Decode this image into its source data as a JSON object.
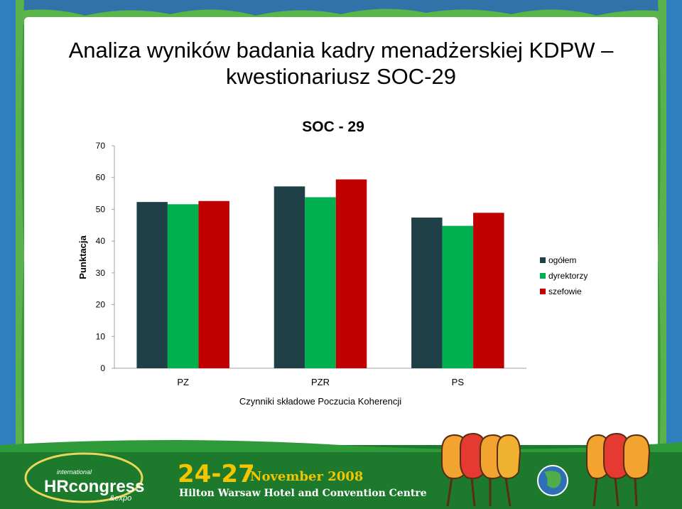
{
  "slide": {
    "title_line1": "Analiza wyników badania kadry menadżerskiej KDPW –",
    "title_line2": "kwestionariusz SOC-29"
  },
  "chart_data": {
    "type": "bar",
    "title": "SOC - 29",
    "xlabel": "Czynniki składowe Poczucia Koherencji",
    "ylabel": "Punktacja",
    "categories": [
      "PZ",
      "PZR",
      "PS"
    ],
    "series": [
      {
        "name": "ogółem",
        "color": "#1f4047",
        "values": [
          52.3,
          57.2,
          47.4
        ]
      },
      {
        "name": "dyrektorzy",
        "color": "#00b050",
        "values": [
          51.6,
          53.8,
          44.8
        ]
      },
      {
        "name": "szefowie",
        "color": "#c00000",
        "values": [
          52.6,
          59.4,
          48.9
        ]
      }
    ],
    "ylim": [
      0,
      70
    ],
    "yticks": [
      "0",
      "10",
      "20",
      "30",
      "40",
      "50",
      "60",
      "70"
    ],
    "grid": false,
    "legend_position": "right"
  },
  "footer": {
    "logo_line1": "international",
    "logo_main": "HRcongress",
    "logo_sub": "&expo",
    "date_range": "24-27",
    "date_month": "November 2008",
    "venue": "Hilton Warsaw Hotel and Convention Centre"
  },
  "colors": {
    "frame_green": "#2f9a3a",
    "frame_blue": "#2f6fb5",
    "footer_green": "#1d7a2c",
    "date_yellow": "#f2c500"
  }
}
